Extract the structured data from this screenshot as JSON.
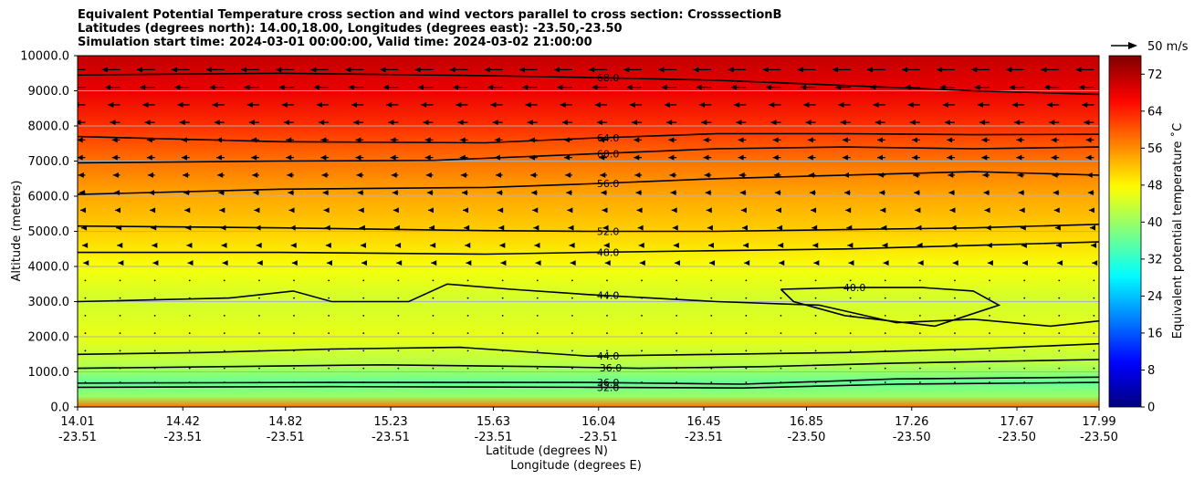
{
  "chart_data": {
    "type": "heatmap",
    "title_lines": [
      "Equivalent Potential Temperature cross section and wind vectors parallel to cross section: CrosssectionB",
      "Latitudes (degrees north): 14.00,18.00, Longitudes (degrees east): -23.50,-23.50",
      "Simulation start time: 2024-03-01 00:00:00, Valid time: 2024-03-02 21:00:00"
    ],
    "ylabel": "Altitude (meters)",
    "xlabel_lat": "Latitude (degrees N)",
    "xlabel_lon": "Longitude (degrees E)",
    "ylim": [
      0,
      10000
    ],
    "xlim": [
      14.01,
      17.99
    ],
    "y_ticks": [
      0,
      1000,
      2000,
      3000,
      4000,
      5000,
      6000,
      7000,
      8000,
      9000,
      10000
    ],
    "y_tick_labels": [
      "0.0",
      "1000.0",
      "2000.0",
      "3000.0",
      "4000.0",
      "5000.0",
      "6000.0",
      "7000.0",
      "8000.0",
      "9000.0",
      "10000.0"
    ],
    "x_ticks": [
      {
        "lat": 14.01,
        "lat_label": "14.01",
        "lon_label": "-23.51"
      },
      {
        "lat": 14.42,
        "lat_label": "14.42",
        "lon_label": "-23.51"
      },
      {
        "lat": 14.82,
        "lat_label": "14.82",
        "lon_label": "-23.51"
      },
      {
        "lat": 15.23,
        "lat_label": "15.23",
        "lon_label": "-23.51"
      },
      {
        "lat": 15.63,
        "lat_label": "15.63",
        "lon_label": "-23.51"
      },
      {
        "lat": 16.04,
        "lat_label": "16.04",
        "lon_label": "-23.51"
      },
      {
        "lat": 16.45,
        "lat_label": "16.45",
        "lon_label": "-23.51"
      },
      {
        "lat": 16.85,
        "lat_label": "16.85",
        "lon_label": "-23.50"
      },
      {
        "lat": 17.26,
        "lat_label": "17.26",
        "lon_label": "-23.50"
      },
      {
        "lat": 17.67,
        "lat_label": "17.67",
        "lon_label": "-23.50"
      },
      {
        "lat": 17.99,
        "lat_label": "17.99",
        "lon_label": "-23.50"
      }
    ],
    "colorbar": {
      "label": "Equivalent potential temperature $^\\circ$C",
      "label_display": "Equivalent potential temperature ˚C",
      "range": [
        0,
        76
      ],
      "tick_values": [
        0,
        8,
        16,
        24,
        32,
        40,
        48,
        56,
        64,
        72
      ],
      "tick_labels": [
        "0",
        "8",
        "16",
        "24",
        "32",
        "40",
        "48",
        "56",
        "64",
        "72"
      ]
    },
    "quiver_key": {
      "label": "50 m/s",
      "speed": 50
    },
    "theta_e_profile": [
      {
        "z": 0,
        "t": 58
      },
      {
        "z": 300,
        "t": 40
      },
      {
        "z": 700,
        "t": 36
      },
      {
        "z": 1200,
        "t": 42
      },
      {
        "z": 2000,
        "t": 46
      },
      {
        "z": 3000,
        "t": 44
      },
      {
        "z": 4000,
        "t": 47
      },
      {
        "z": 5000,
        "t": 51
      },
      {
        "z": 6000,
        "t": 54
      },
      {
        "z": 7000,
        "t": 58
      },
      {
        "z": 8000,
        "t": 63
      },
      {
        "z": 9000,
        "t": 68
      },
      {
        "z": 10000,
        "t": 71
      }
    ],
    "contours": [
      {
        "label": "68.0",
        "label_lat": 16.03,
        "points": [
          [
            14.01,
            9450
          ],
          [
            14.8,
            9500
          ],
          [
            15.6,
            9430
          ],
          [
            16.0,
            9380
          ],
          [
            16.5,
            9300
          ],
          [
            17.0,
            9150
          ],
          [
            17.5,
            9000
          ],
          [
            17.99,
            8900
          ]
        ]
      },
      {
        "label": "64.0",
        "label_lat": 16.03,
        "points": [
          [
            14.01,
            7700
          ],
          [
            14.8,
            7550
          ],
          [
            15.6,
            7520
          ],
          [
            16.0,
            7650
          ],
          [
            16.5,
            7780
          ],
          [
            17.0,
            7780
          ],
          [
            17.5,
            7750
          ],
          [
            17.99,
            7760
          ]
        ]
      },
      {
        "label": "60.0",
        "label_lat": 16.03,
        "points": [
          [
            14.01,
            6950
          ],
          [
            14.8,
            7000
          ],
          [
            15.4,
            7020
          ],
          [
            16.0,
            7200
          ],
          [
            16.5,
            7350
          ],
          [
            17.0,
            7400
          ],
          [
            17.5,
            7350
          ],
          [
            17.99,
            7400
          ]
        ]
      },
      {
        "label": "56.0",
        "label_lat": 16.03,
        "points": [
          [
            14.01,
            6050
          ],
          [
            14.8,
            6200
          ],
          [
            15.6,
            6250
          ],
          [
            16.0,
            6350
          ],
          [
            16.5,
            6500
          ],
          [
            17.0,
            6600
          ],
          [
            17.5,
            6700
          ],
          [
            17.99,
            6600
          ]
        ]
      },
      {
        "label": "52.0",
        "label_lat": 16.03,
        "points": [
          [
            14.01,
            5150
          ],
          [
            14.8,
            5100
          ],
          [
            15.6,
            5020
          ],
          [
            16.0,
            5000
          ],
          [
            16.5,
            5000
          ],
          [
            17.0,
            5050
          ],
          [
            17.5,
            5100
          ],
          [
            17.99,
            5200
          ]
        ]
      },
      {
        "label": "48.0",
        "label_lat": 16.03,
        "points": [
          [
            14.01,
            4400
          ],
          [
            14.8,
            4400
          ],
          [
            15.6,
            4350
          ],
          [
            16.0,
            4400
          ],
          [
            16.5,
            4450
          ],
          [
            17.0,
            4500
          ],
          [
            17.5,
            4600
          ],
          [
            17.99,
            4700
          ]
        ]
      },
      {
        "label": "44.0",
        "label_lat": 16.03,
        "points": [
          [
            14.01,
            3000
          ],
          [
            14.6,
            3100
          ],
          [
            14.85,
            3300
          ],
          [
            15.0,
            3000
          ],
          [
            15.3,
            3000
          ],
          [
            15.45,
            3500
          ],
          [
            15.7,
            3350
          ],
          [
            16.0,
            3200
          ],
          [
            16.5,
            3000
          ],
          [
            16.9,
            2900
          ],
          [
            17.2,
            2400
          ],
          [
            17.5,
            2500
          ],
          [
            17.8,
            2300
          ],
          [
            17.99,
            2450
          ]
        ]
      },
      {
        "label": "40.0",
        "label_lat": 16.99,
        "points": [
          [
            16.75,
            3350
          ],
          [
            17.0,
            3400
          ],
          [
            17.3,
            3400
          ],
          [
            17.5,
            3300
          ],
          [
            17.6,
            2900
          ],
          [
            17.35,
            2300
          ],
          [
            17.0,
            2600
          ],
          [
            16.8,
            3000
          ],
          [
            16.75,
            3350
          ]
        ]
      },
      {
        "label": "44.0",
        "label_lat": 16.03,
        "points": [
          [
            14.01,
            1500
          ],
          [
            14.5,
            1550
          ],
          [
            15.0,
            1650
          ],
          [
            15.5,
            1700
          ],
          [
            16.0,
            1450
          ],
          [
            16.5,
            1500
          ],
          [
            17.0,
            1550
          ],
          [
            17.5,
            1650
          ],
          [
            17.99,
            1800
          ]
        ]
      },
      {
        "label": "36.0",
        "label_lat": 16.04,
        "points": [
          [
            14.01,
            1100
          ],
          [
            14.6,
            1150
          ],
          [
            15.2,
            1200
          ],
          [
            15.8,
            1150
          ],
          [
            16.2,
            1100
          ],
          [
            16.7,
            1150
          ],
          [
            17.2,
            1250
          ],
          [
            17.99,
            1350
          ]
        ]
      },
      {
        "label": "36.0",
        "label_lat": 16.03,
        "points": [
          [
            14.01,
            680
          ],
          [
            15.0,
            700
          ],
          [
            16.0,
            700
          ],
          [
            16.6,
            650
          ],
          [
            17.2,
            800
          ],
          [
            17.99,
            850
          ]
        ]
      },
      {
        "label": "32.0",
        "label_lat": 16.03,
        "points": [
          [
            14.01,
            560
          ],
          [
            15.0,
            580
          ],
          [
            16.0,
            560
          ],
          [
            16.6,
            540
          ],
          [
            17.2,
            650
          ],
          [
            17.99,
            700
          ]
        ]
      }
    ],
    "wind_vectors": [
      {
        "z": 9600,
        "u": -18
      },
      {
        "z": 9100,
        "u": -15
      },
      {
        "z": 8600,
        "u": -12
      },
      {
        "z": 8100,
        "u": -10
      },
      {
        "z": 7600,
        "u": -8
      },
      {
        "z": 7100,
        "u": -8
      },
      {
        "z": 6600,
        "u": -7
      },
      {
        "z": 6100,
        "u": -6
      },
      {
        "z": 5600,
        "u": -5
      },
      {
        "z": 5100,
        "u": -4
      },
      {
        "z": 4600,
        "u": -3
      },
      {
        "z": 4100,
        "u": -2
      },
      {
        "z": 3600,
        "u": -1
      },
      {
        "z": 3100,
        "u": -0.5
      },
      {
        "z": 2600,
        "u": -0.3
      },
      {
        "z": 2100,
        "u": 0.3
      },
      {
        "z": 1600,
        "u": 0.4
      },
      {
        "z": 1100,
        "u": 0.6
      },
      {
        "z": 700,
        "u": 1
      }
    ]
  }
}
